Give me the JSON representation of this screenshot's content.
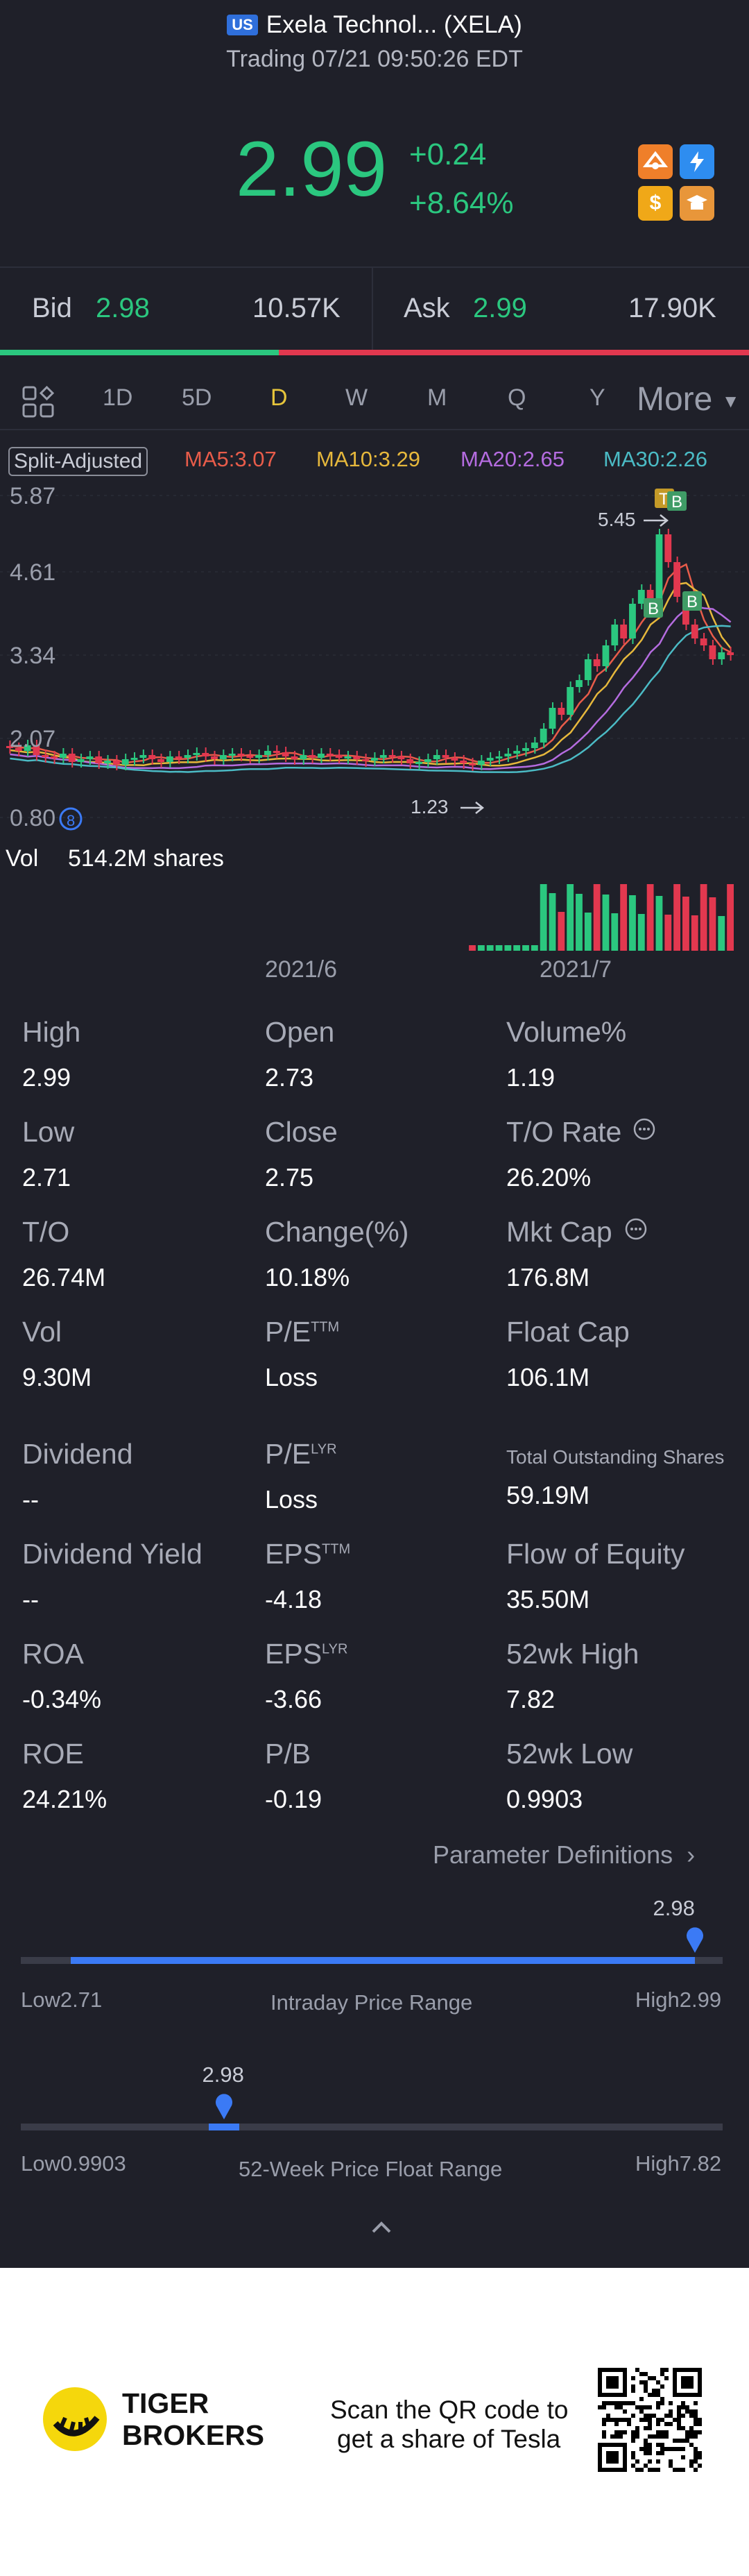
{
  "header": {
    "market_badge": "US",
    "title": "Exela Technol... (XELA)",
    "status_line": "Trading 07/21 09:50:26 EDT"
  },
  "quote": {
    "price": "2.99",
    "change": "+0.24",
    "change_pct": "+8.64%",
    "color_up": "#2bc77f",
    "color_down": "#e2384f",
    "icons": [
      "promo-icon",
      "lightning-icon",
      "dollar-icon",
      "education-icon"
    ]
  },
  "bid_ask": {
    "bid_label": "Bid",
    "bid_price": "2.98",
    "bid_size": "10.57K",
    "ask_label": "Ask",
    "ask_price": "2.99",
    "ask_size": "17.90K",
    "bid_share": 0.372
  },
  "tabs": {
    "items": [
      "1D",
      "5D",
      "D",
      "W",
      "M",
      "Q",
      "Y"
    ],
    "active": "D",
    "more": "More"
  },
  "chart": {
    "split_label": "Split-Adjusted",
    "ma5": "MA5:3.07",
    "ma10": "MA10:3.29",
    "ma20": "MA20:2.65",
    "ma30": "MA30:2.26",
    "y_ticks": [
      "5.87",
      "4.61",
      "3.34",
      "2.07",
      "0.80"
    ],
    "high_marker": "5.45",
    "low_marker": "1.23",
    "vol_label": "Vol",
    "vol_value": "514.2M shares",
    "x_ticks": [
      "2021/6",
      "2021/7"
    ],
    "signals": [
      "T",
      "B",
      "B",
      "B"
    ]
  },
  "stats": {
    "high_label": "High",
    "high": "2.99",
    "open_label": "Open",
    "open": "2.73",
    "volpct_label": "Volume%",
    "volpct": "1.19",
    "low_label": "Low",
    "low": "2.71",
    "close_label": "Close",
    "close": "2.75",
    "torate_label": "T/O Rate",
    "torate": "26.20%",
    "to_label": "T/O",
    "to": "26.74M",
    "changepct_label": "Change(%)",
    "changepct": "10.18%",
    "mktcap_label": "Mkt Cap",
    "mktcap": "176.8M",
    "vol_label": "Vol",
    "vol": "9.30M",
    "pe_label": "P/E",
    "pe_sup": "TTM",
    "pe": "Loss",
    "floatcap_label": "Float Cap",
    "floatcap": "106.1M",
    "dividend_label": "Dividend",
    "dividend": "--",
    "pelyr_label": "P/E",
    "pelyr_sup": "LYR",
    "pelyr": "Loss",
    "tos_label": "Total Outstanding Shares",
    "tos": "59.19M",
    "divyield_label": "Dividend Yield",
    "divyield": "--",
    "eps_label": "EPS",
    "eps_sup": "TTM",
    "eps": "-4.18",
    "foe_label": "Flow of Equity",
    "foe": "35.50M",
    "roa_label": "ROA",
    "roa": "-0.34%",
    "epslyr_label": "EPS",
    "epslyr_sup": "LYR",
    "epslyr": "-3.66",
    "wkhigh_label": "52wk High",
    "wkhigh": "7.82",
    "roe_label": "ROE",
    "roe": "24.21%",
    "pb_label": "P/B",
    "pb": "-0.19",
    "wklow_label": "52wk Low",
    "wklow": "0.9903"
  },
  "param_link": "Parameter Definitions",
  "intraday": {
    "current": "2.98",
    "low_label": "Low",
    "low": "2.71",
    "high_label": "High",
    "high": "2.99",
    "title": "Intraday Price Range",
    "position": 0.96
  },
  "week52": {
    "current": "2.98",
    "low_label": "Low",
    "low": "0.9903",
    "high_label": "High",
    "high": "7.82",
    "title": "52-Week Price Float Range",
    "position": 0.29
  },
  "footer": {
    "brand_line1": "TIGER",
    "brand_line2": "BROKERS",
    "promo_line1": "Scan the QR code to",
    "promo_line2": "get a share of Tesla"
  }
}
